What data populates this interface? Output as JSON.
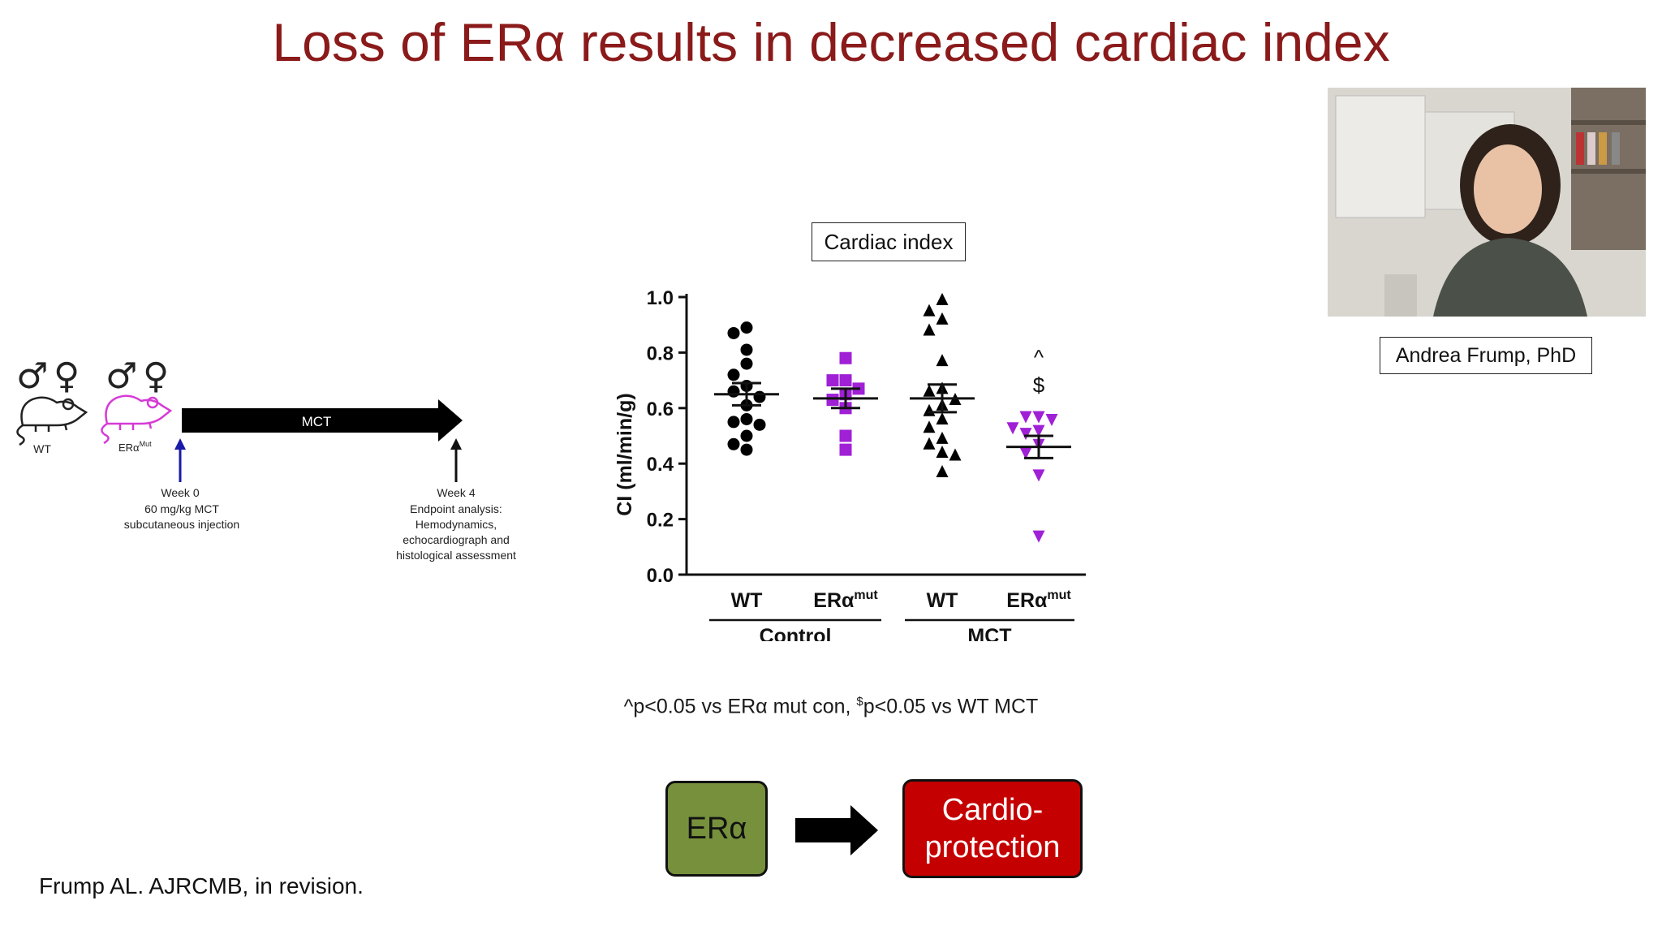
{
  "slide": {
    "title": "Loss of ERα results in decreased cardiac index",
    "speaker_name": "Andrea Frump, PhD",
    "citation": "Frump AL. AJRCMB, in revision."
  },
  "schematic": {
    "male_symbol": "♂",
    "female_symbol": "♀",
    "mouse_wt_label": "WT",
    "mouse_mut_label": "ERα",
    "mouse_mut_sup": "Mut",
    "treatment_label": "MCT",
    "week0_title": "Week 0",
    "week0_lines": [
      "60 mg/kg MCT",
      "subcutaneous injection"
    ],
    "week4_title": "Week 4",
    "week4_lines": [
      "Endpoint analysis:",
      "Hemodynamics,",
      "echocardiograph and",
      "histological assessment"
    ],
    "colors": {
      "wt": "#222222",
      "mut": "#d63ad6",
      "week0_arrow": "#1a1aa8"
    }
  },
  "chart_data": {
    "type": "scatter",
    "title": "Cardiac index",
    "ylabel": "CI (ml/min/g)",
    "ylim": [
      0,
      1.0
    ],
    "yticks": [
      0.0,
      0.2,
      0.4,
      0.6,
      0.8,
      1.0
    ],
    "ytick_labels": [
      "0.0",
      "0.2",
      "0.4",
      "0.6",
      "0.8",
      "1.0"
    ],
    "categories": [
      "WT",
      "ERα",
      "WT",
      "ERα"
    ],
    "category_sups": [
      "",
      "mut",
      "",
      "mut"
    ],
    "groups": [
      "Control",
      "MCT"
    ],
    "series": [
      {
        "category_index": 0,
        "marker": "circle",
        "color": "#000000",
        "mean": 0.65,
        "sem": 0.04,
        "values": [
          0.89,
          0.87,
          0.81,
          0.76,
          0.72,
          0.68,
          0.66,
          0.64,
          0.61,
          0.56,
          0.55,
          0.54,
          0.5,
          0.47,
          0.45
        ]
      },
      {
        "category_index": 1,
        "marker": "square",
        "color": "#a020d6",
        "mean": 0.635,
        "sem": 0.035,
        "values": [
          0.78,
          0.7,
          0.7,
          0.67,
          0.65,
          0.63,
          0.6,
          0.5,
          0.45
        ]
      },
      {
        "category_index": 2,
        "marker": "triangle-up",
        "color": "#000000",
        "mean": 0.635,
        "sem": 0.05,
        "values": [
          0.99,
          0.95,
          0.92,
          0.88,
          0.77,
          0.67,
          0.66,
          0.63,
          0.61,
          0.59,
          0.56,
          0.53,
          0.49,
          0.47,
          0.44,
          0.43,
          0.37
        ]
      },
      {
        "category_index": 3,
        "marker": "triangle-down",
        "color": "#a020d6",
        "mean": 0.46,
        "sem": 0.04,
        "values": [
          0.57,
          0.57,
          0.56,
          0.53,
          0.52,
          0.51,
          0.47,
          0.44,
          0.36,
          0.14
        ]
      }
    ],
    "annotations": [
      {
        "category_index": 3,
        "text": "^",
        "y": 0.78
      },
      {
        "category_index": 3,
        "text": "$",
        "y": 0.68
      }
    ]
  },
  "footnote": {
    "part1": "^p<0.05 vs ERα mut con, ",
    "sup": "$",
    "part2": "p<0.05 vs WT MCT"
  },
  "flow": {
    "era_label": "ERα",
    "cardio_line1": "Cardio-",
    "cardio_line2": "protection",
    "colors": {
      "era_fill": "#76903c",
      "cardio_fill": "#c50000"
    }
  }
}
